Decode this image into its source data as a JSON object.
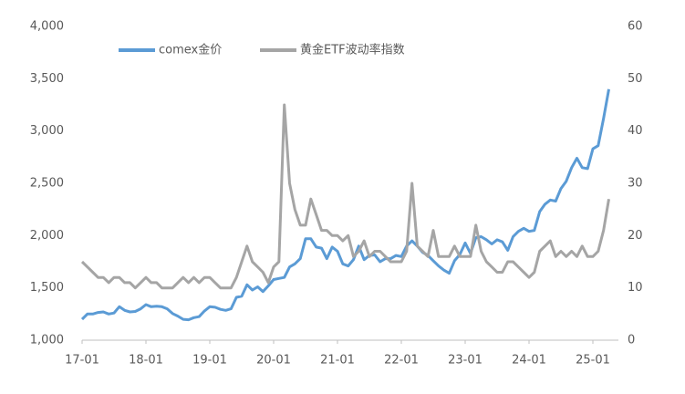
{
  "chart_data": {
    "type": "line",
    "categories": [
      "17-01",
      null,
      null,
      null,
      null,
      null,
      null,
      null,
      null,
      null,
      null,
      null,
      "18-01",
      null,
      null,
      null,
      null,
      null,
      null,
      null,
      null,
      null,
      null,
      null,
      "19-01",
      null,
      null,
      null,
      null,
      null,
      null,
      null,
      null,
      null,
      null,
      null,
      "20-01",
      null,
      null,
      null,
      null,
      null,
      null,
      null,
      null,
      null,
      null,
      null,
      "21-01",
      null,
      null,
      null,
      null,
      null,
      null,
      null,
      null,
      null,
      null,
      null,
      "22-01",
      null,
      null,
      null,
      null,
      null,
      null,
      null,
      null,
      null,
      null,
      null,
      "23-01",
      null,
      null,
      null,
      null,
      null,
      null,
      null,
      null,
      null,
      null,
      null,
      "24-01",
      null,
      null,
      null,
      null,
      null,
      null,
      null,
      null,
      null,
      null,
      null,
      "25-01",
      null,
      null,
      null
    ],
    "series": [
      {
        "name": "comex金价",
        "color": "#5b9bd5",
        "values": [
          1200,
          1250,
          1250,
          1265,
          1270,
          1250,
          1260,
          1320,
          1285,
          1270,
          1275,
          1300,
          1340,
          1320,
          1325,
          1320,
          1300,
          1255,
          1230,
          1200,
          1195,
          1215,
          1225,
          1280,
          1320,
          1315,
          1295,
          1285,
          1300,
          1410,
          1420,
          1530,
          1480,
          1510,
          1465,
          1520,
          1580,
          1590,
          1600,
          1700,
          1730,
          1780,
          1970,
          1970,
          1890,
          1880,
          1780,
          1890,
          1850,
          1730,
          1710,
          1770,
          1900,
          1770,
          1810,
          1815,
          1750,
          1780,
          1780,
          1810,
          1800,
          1900,
          1950,
          1900,
          1840,
          1810,
          1760,
          1710,
          1670,
          1640,
          1760,
          1820,
          1930,
          1830,
          1980,
          1990,
          1960,
          1920,
          1960,
          1940,
          1860,
          1990,
          2040,
          2070,
          2040,
          2050,
          2230,
          2300,
          2340,
          2330,
          2450,
          2520,
          2650,
          2740,
          2650,
          2640,
          2830,
          2860,
          3120,
          3400
        ]
      },
      {
        "name": "黄金ETF波动率指数",
        "color": "#a5a5a5",
        "axis": "y2",
        "values": [
          15,
          14,
          13,
          12,
          12,
          11,
          12,
          12,
          11,
          11,
          10,
          11,
          12,
          11,
          11,
          10,
          10,
          10,
          11,
          12,
          11,
          12,
          11,
          12,
          12,
          11,
          10,
          10,
          10,
          12,
          15,
          18,
          15,
          14,
          13,
          11,
          14,
          15,
          45,
          30,
          25,
          22,
          22,
          27,
          24,
          21,
          21,
          20,
          20,
          19,
          20,
          16,
          17,
          19,
          16,
          17,
          17,
          16,
          15,
          15,
          15,
          17,
          30,
          18,
          17,
          16,
          21,
          16,
          16,
          16,
          18,
          16,
          16,
          16,
          22,
          17,
          15,
          14,
          13,
          13,
          15,
          15,
          14,
          13,
          12,
          13,
          17,
          18,
          19,
          16,
          17,
          16,
          17,
          16,
          18,
          16,
          16,
          17,
          21,
          27
        ]
      }
    ],
    "ylim": [
      1000,
      4000
    ],
    "yticks": [
      {
        "value": 1000,
        "label": "1,000"
      },
      {
        "value": 1500,
        "label": "1,500"
      },
      {
        "value": 2000,
        "label": "2,000"
      },
      {
        "value": 2500,
        "label": "2,500"
      },
      {
        "value": 3000,
        "label": "3,000"
      },
      {
        "value": 3500,
        "label": "3,500"
      },
      {
        "value": 4000,
        "label": "4,000"
      }
    ],
    "y2lim": [
      0,
      60
    ],
    "y2ticks": [
      0,
      10,
      20,
      30,
      40,
      50,
      60
    ],
    "legend": "top"
  }
}
